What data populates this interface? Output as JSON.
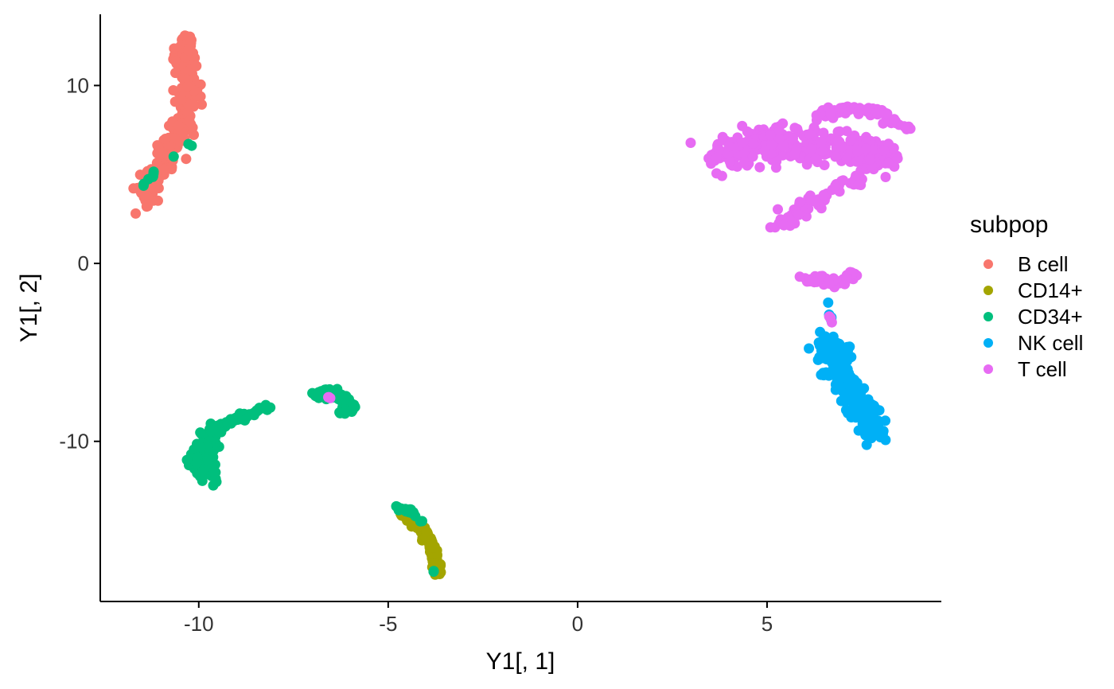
{
  "chart_data": {
    "type": "scatter",
    "xlabel": "Y1[, 1]",
    "ylabel": "Y1[, 2]",
    "xlim": [
      -12.6,
      9.6
    ],
    "ylim": [
      -19.0,
      14.0
    ],
    "x_ticks": [
      -10,
      -5,
      0,
      5
    ],
    "x_tick_labels": [
      "-10",
      "-5",
      "0",
      "5"
    ],
    "y_ticks": [
      -10,
      0,
      10
    ],
    "y_tick_labels": [
      "-10",
      "0",
      "10"
    ],
    "grid": false,
    "legend": {
      "title": "subpop",
      "placement": "right",
      "entries": [
        {
          "label": "B cell",
          "color": "#F8766D"
        },
        {
          "label": "CD14+",
          "color": "#A3A500"
        },
        {
          "label": "CD34+",
          "color": "#00BF7D"
        },
        {
          "label": "NK cell",
          "color": "#00B0F6"
        },
        {
          "label": "T cell",
          "color": "#E76BF3"
        }
      ]
    },
    "series": [
      {
        "name": "B cell",
        "color": "#F8766D",
        "clusters": [
          {
            "path": [
              [
                -11.5,
                3.7
              ],
              [
                -11.2,
                4.8
              ],
              [
                -10.9,
                6.0
              ],
              [
                -10.6,
                7.0
              ],
              [
                -10.3,
                8.0
              ],
              [
                -10.2,
                9.2
              ],
              [
                -10.3,
                10.5
              ],
              [
                -10.4,
                11.6
              ],
              [
                -10.3,
                12.4
              ]
            ],
            "spread": [
              0.28,
              0.75
            ],
            "count": 320
          }
        ]
      },
      {
        "name": "CD14+",
        "color": "#A3A500",
        "clusters": [
          {
            "path": [
              [
                -4.6,
                -14.2
              ],
              [
                -4.1,
                -14.9
              ],
              [
                -3.85,
                -15.9
              ],
              [
                -3.75,
                -16.8
              ],
              [
                -3.7,
                -17.4
              ]
            ],
            "spread": [
              0.09,
              0.22
            ],
            "count": 150
          }
        ]
      },
      {
        "name": "CD34+",
        "color": "#00BF7D",
        "clusters": [
          {
            "path": [
              [
                -8.1,
                -8.0
              ],
              [
                -8.6,
                -8.4
              ],
              [
                -9.1,
                -8.8
              ],
              [
                -9.5,
                -9.3
              ]
            ],
            "spread": [
              0.1,
              0.2
            ],
            "count": 60
          },
          {
            "path": [
              [
                -9.6,
                -9.5
              ],
              [
                -9.85,
                -10.4
              ],
              [
                -9.95,
                -11.0
              ],
              [
                -9.8,
                -11.8
              ]
            ],
            "spread": [
              0.3,
              0.55
            ],
            "count": 150
          },
          {
            "path": [
              [
                -7.0,
                -7.4
              ],
              [
                -6.5,
                -7.3
              ],
              [
                -6.2,
                -7.6
              ],
              [
                -5.95,
                -8.0
              ],
              [
                -6.1,
                -8.3
              ]
            ],
            "spread": [
              0.18,
              0.28
            ],
            "count": 85
          },
          {
            "path": [
              [
                -4.8,
                -13.7
              ],
              [
                -4.55,
                -13.8
              ],
              [
                -4.35,
                -14.1
              ],
              [
                -4.1,
                -14.5
              ]
            ],
            "spread": [
              0.08,
              0.12
            ],
            "count": 22
          },
          {
            "path": [
              [
                -11.5,
                4.2
              ],
              [
                -11.0,
                5.5
              ],
              [
                -10.1,
                6.9
              ]
            ],
            "spread": [
              0.06,
              0.12
            ],
            "count": 10
          },
          {
            "path": [
              [
                -3.8,
                -17.3
              ]
            ],
            "spread": [
              0.04,
              0.08
            ],
            "count": 2
          }
        ]
      },
      {
        "name": "NK cell",
        "color": "#00B0F6",
        "clusters": [
          {
            "path": [
              [
                6.6,
                -2.2
              ],
              [
                6.75,
                -3.7
              ]
            ],
            "spread": [
              0.05,
              0.2
            ],
            "count": 4
          },
          {
            "path": [
              [
                6.6,
                -4.2
              ],
              [
                6.8,
                -5.2
              ],
              [
                6.9,
                -6.3
              ],
              [
                7.3,
                -7.5
              ],
              [
                7.7,
                -8.7
              ],
              [
                7.85,
                -9.8
              ]
            ],
            "spread": [
              0.38,
              0.42
            ],
            "count": 260
          }
        ]
      },
      {
        "name": "T cell",
        "color": "#E76BF3",
        "clusters": [
          {
            "path": [
              [
                3.6,
                6.0
              ],
              [
                4.5,
                6.5
              ],
              [
                5.5,
                6.7
              ],
              [
                6.5,
                6.6
              ],
              [
                7.5,
                6.3
              ],
              [
                8.2,
                6.0
              ]
            ],
            "spread": [
              0.5,
              0.95
            ],
            "count": 340
          },
          {
            "path": [
              [
                5.3,
                2.0
              ],
              [
                5.8,
                2.9
              ],
              [
                6.5,
                3.8
              ],
              [
                7.6,
                5.0
              ]
            ],
            "spread": [
              0.22,
              0.38
            ],
            "count": 70
          },
          {
            "path": [
              [
                6.3,
                8.2
              ],
              [
                7.0,
                8.7
              ],
              [
                7.8,
                8.6
              ],
              [
                8.6,
                7.7
              ]
            ],
            "spread": [
              0.3,
              0.3
            ],
            "count": 70
          },
          {
            "path": [
              [
                6.0,
                -0.9
              ],
              [
                6.5,
                -1.0
              ],
              [
                7.0,
                -1.0
              ],
              [
                7.3,
                -0.5
              ]
            ],
            "spread": [
              0.18,
              0.22
            ],
            "count": 55
          },
          {
            "path": [
              [
                6.6,
                -2.7
              ],
              [
                6.7,
                -3.3
              ]
            ],
            "spread": [
              0.04,
              0.12
            ],
            "count": 4
          },
          {
            "path": [
              [
                -6.6,
                -7.5
              ],
              [
                -6.5,
                -7.6
              ]
            ],
            "spread": [
              0.04,
              0.04
            ],
            "count": 3
          }
        ]
      }
    ]
  }
}
